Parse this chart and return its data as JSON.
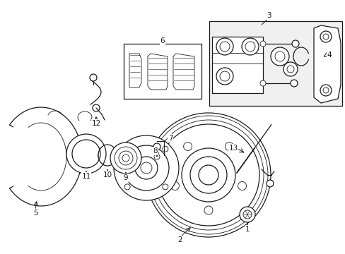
{
  "bg_color": "#ffffff",
  "line_color": "#1a1a1a",
  "gray_fill": "#e8e8e8",
  "fig_width": 4.89,
  "fig_height": 3.6,
  "dpi": 100
}
